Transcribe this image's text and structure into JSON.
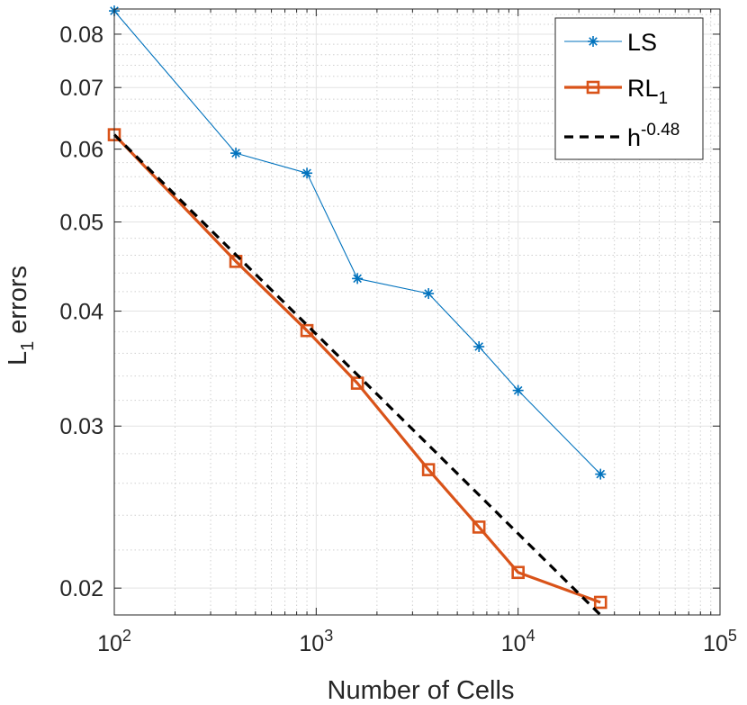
{
  "chart_data": {
    "type": "line",
    "xscale": "log",
    "yscale": "log",
    "xlim": [
      100,
      100000
    ],
    "ylim": [
      0.0187,
      0.0852
    ],
    "grid": true,
    "minor_grid": true,
    "xlabel": "Number of Cells",
    "ylabel": {
      "base": "L",
      "sub": "1",
      "rest": " errors"
    },
    "x_ticks": [
      {
        "value": 100,
        "base": "10",
        "exp": "2"
      },
      {
        "value": 1000,
        "base": "10",
        "exp": "3"
      },
      {
        "value": 10000,
        "base": "10",
        "exp": "4"
      },
      {
        "value": 100000,
        "base": "10",
        "exp": "5"
      }
    ],
    "y_ticks": [
      {
        "value": 0.02,
        "label": "0.02"
      },
      {
        "value": 0.03,
        "label": "0.03"
      },
      {
        "value": 0.04,
        "label": "0.04"
      },
      {
        "value": 0.05,
        "label": "0.05"
      },
      {
        "value": 0.06,
        "label": "0.06"
      },
      {
        "value": 0.07,
        "label": "0.07"
      },
      {
        "value": 0.08,
        "label": "0.08"
      }
    ],
    "legend_position": "top-right",
    "series": [
      {
        "name": "LS",
        "legend": {
          "base": "LS",
          "sub": "",
          "sup": ""
        },
        "color": "#0072BD",
        "marker": "asterisk",
        "style": "solid",
        "width": "thin",
        "x": [
          100,
          400,
          900,
          1600,
          3600,
          6400,
          10000,
          25600
        ],
        "y": [
          0.0848,
          0.0594,
          0.0565,
          0.0434,
          0.0418,
          0.0366,
          0.0328,
          0.0266
        ]
      },
      {
        "name": "RL1",
        "legend": {
          "base": "RL",
          "sub": "1",
          "sup": ""
        },
        "color": "#D95319",
        "marker": "square",
        "style": "solid",
        "width": "thick",
        "x": [
          100,
          400,
          900,
          1600,
          3600,
          6400,
          10000,
          25600
        ],
        "y": [
          0.0622,
          0.0453,
          0.0381,
          0.0334,
          0.0269,
          0.0233,
          0.0208,
          0.0193
        ]
      },
      {
        "name": "h^-0.48",
        "legend": {
          "base": "h",
          "sub": "",
          "sup": "-0.48"
        },
        "color": "#000000",
        "marker": "none",
        "style": "dashed",
        "width": "thick",
        "x": [
          100,
          25600
        ],
        "y": [
          0.0622,
          0.0187
        ]
      }
    ]
  }
}
